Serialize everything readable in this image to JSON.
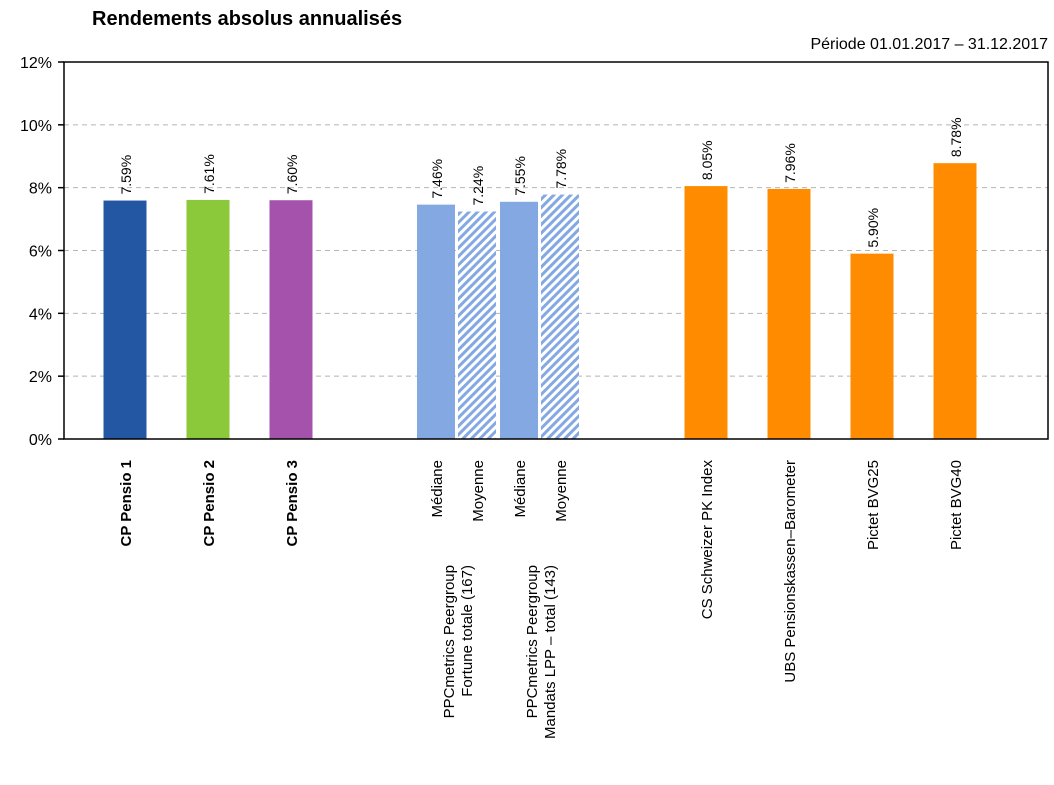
{
  "chart_data": {
    "type": "bar",
    "title": "Rendements absolus annualisés",
    "subtitle": "Période 01.01.2017 – 31.12.2017",
    "ylabel": "",
    "xlabel": "",
    "ylim": [
      0,
      12
    ],
    "yticks": [
      0,
      2,
      4,
      6,
      8,
      10,
      12
    ],
    "ytick_labels": [
      "0%",
      "2%",
      "4%",
      "6%",
      "8%",
      "10%",
      "12%"
    ],
    "grid": true,
    "value_suffix": "%",
    "bars": [
      {
        "label": "CP Pensio 1",
        "value": 7.59,
        "value_label": "7.59%",
        "color": "#2357a3",
        "bold": true,
        "hatched": false,
        "group": "",
        "slot": 1
      },
      {
        "label": "CP Pensio 2",
        "value": 7.61,
        "value_label": "7.61%",
        "color": "#8cc93a",
        "bold": true,
        "hatched": false,
        "group": "",
        "slot": 2
      },
      {
        "label": "CP Pensio 3",
        "value": 7.6,
        "value_label": "7.60%",
        "color": "#a552ac",
        "bold": true,
        "hatched": false,
        "group": "",
        "slot": 3
      },
      {
        "label": "Médiane",
        "value": 7.46,
        "value_label": "7.46%",
        "color": "#84a9e2",
        "bold": false,
        "hatched": false,
        "group": "PPCmetrics Peergroup Fortune totale (167)",
        "slot": 5
      },
      {
        "label": "Moyenne",
        "value": 7.24,
        "value_label": "7.24%",
        "color": "#84a9e2",
        "bold": false,
        "hatched": true,
        "group": "PPCmetrics Peergroup Fortune totale (167)",
        "slot": 5.5
      },
      {
        "label": "Médiane",
        "value": 7.55,
        "value_label": "7.55%",
        "color": "#84a9e2",
        "bold": false,
        "hatched": false,
        "group": "PPCmetrics Peergroup Mandats LPP – total (143)",
        "slot": 6
      },
      {
        "label": "Moyenne",
        "value": 7.78,
        "value_label": "7.78%",
        "color": "#84a9e2",
        "bold": false,
        "hatched": true,
        "group": "PPCmetrics Peergroup Mandats LPP – total (143)",
        "slot": 6.5
      },
      {
        "label": "CS Schweizer PK Index",
        "value": 8.05,
        "value_label": "8.05%",
        "color": "#ff8c00",
        "bold": false,
        "hatched": false,
        "group": "",
        "slot": 8
      },
      {
        "label": "UBS Pensionskassen–Barometer",
        "value": 7.96,
        "value_label": "7.96%",
        "color": "#ff8c00",
        "bold": false,
        "hatched": false,
        "group": "",
        "slot": 9
      },
      {
        "label": "Pictet BVG25",
        "value": 5.9,
        "value_label": "5.90%",
        "color": "#ff8c00",
        "bold": false,
        "hatched": false,
        "group": "",
        "slot": 10
      },
      {
        "label": "Pictet BVG40",
        "value": 8.78,
        "value_label": "8.78%",
        "color": "#ff8c00",
        "bold": false,
        "hatched": false,
        "group": "",
        "slot": 11
      }
    ],
    "groups": [
      {
        "line1": "PPCmetrics Peergroup",
        "line2": "Fortune totale (167)"
      },
      {
        "line1": "PPCmetrics Peergroup",
        "line2": "Mandats LPP – total (143)"
      }
    ]
  }
}
